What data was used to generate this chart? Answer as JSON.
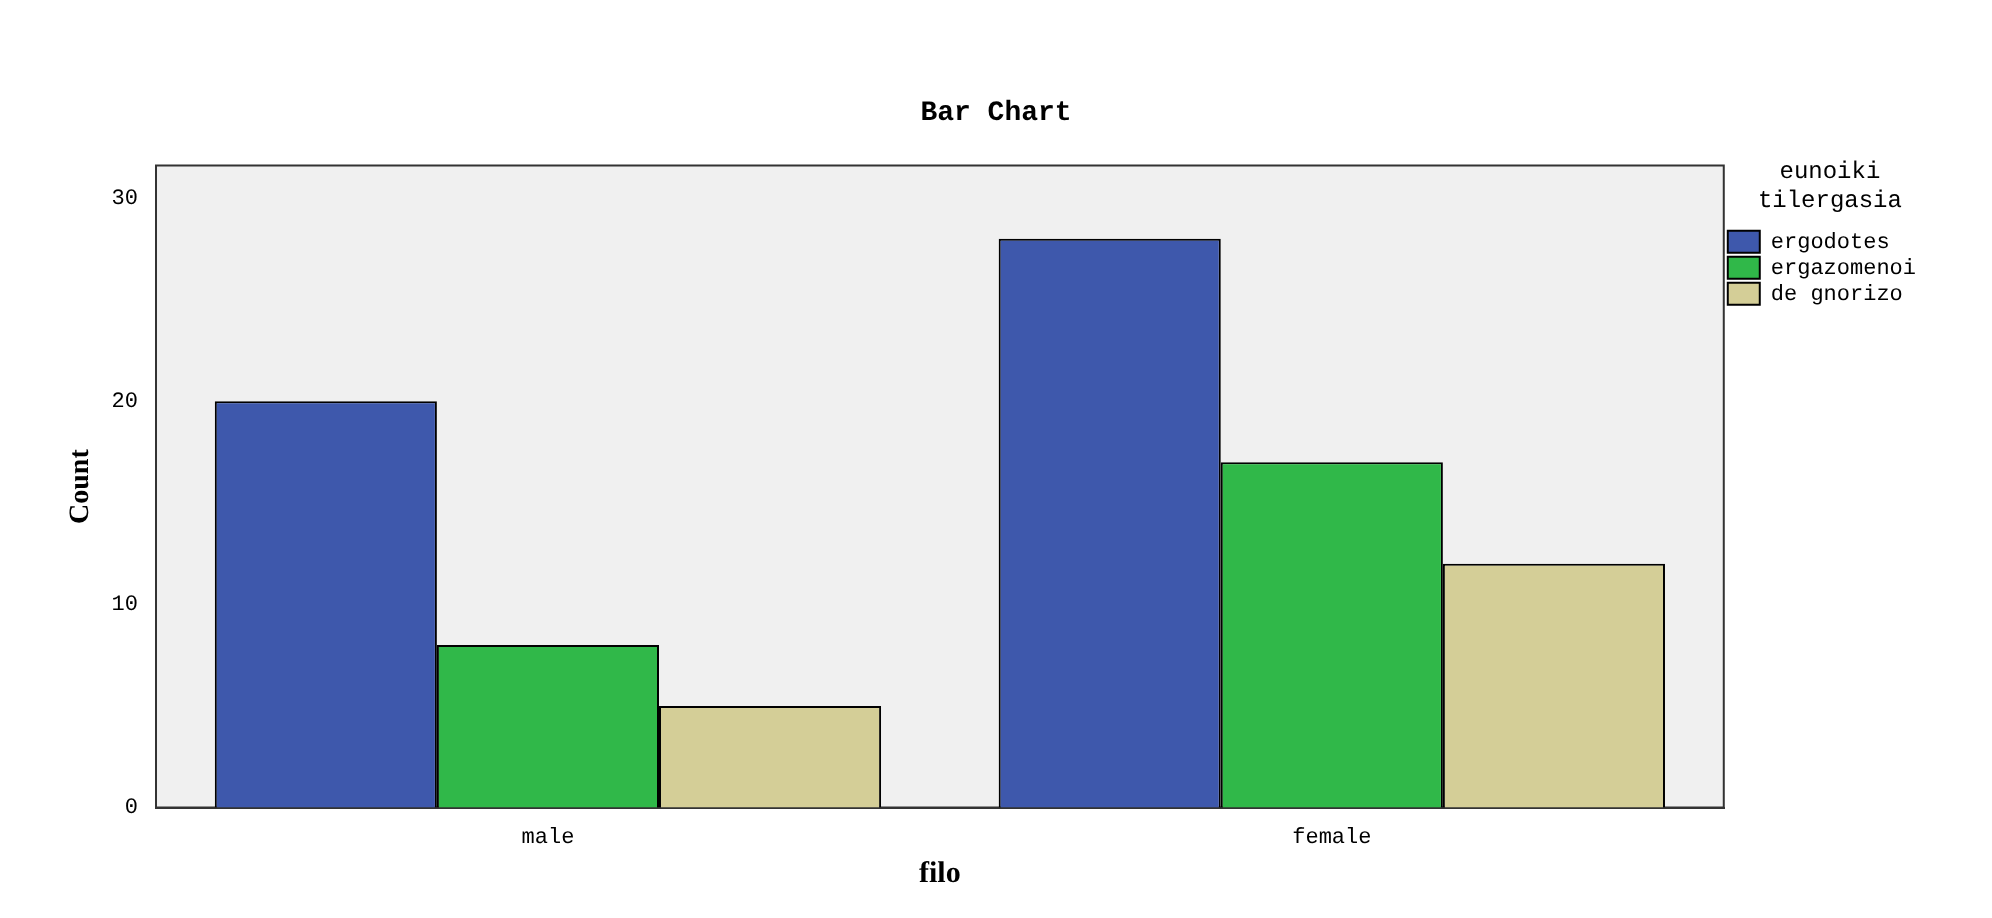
{
  "chart_data": {
    "type": "bar",
    "title": "Bar Chart",
    "xlabel": "filo",
    "ylabel": "Count",
    "legend_title": "eunoiki tilergasia",
    "categories": [
      "male",
      "female"
    ],
    "series": [
      {
        "name": "ergodotes",
        "color": "#3e58ac",
        "values": [
          20,
          28
        ]
      },
      {
        "name": "ergazomenoi",
        "color": "#30b849",
        "values": [
          8,
          17
        ]
      },
      {
        "name": "de gnorizo",
        "color": "#d4ce97",
        "values": [
          5,
          12
        ]
      }
    ],
    "ylim": [
      0,
      31.6
    ],
    "yticks": [
      0,
      10,
      20,
      30
    ],
    "grid": false,
    "legend": "top right"
  }
}
